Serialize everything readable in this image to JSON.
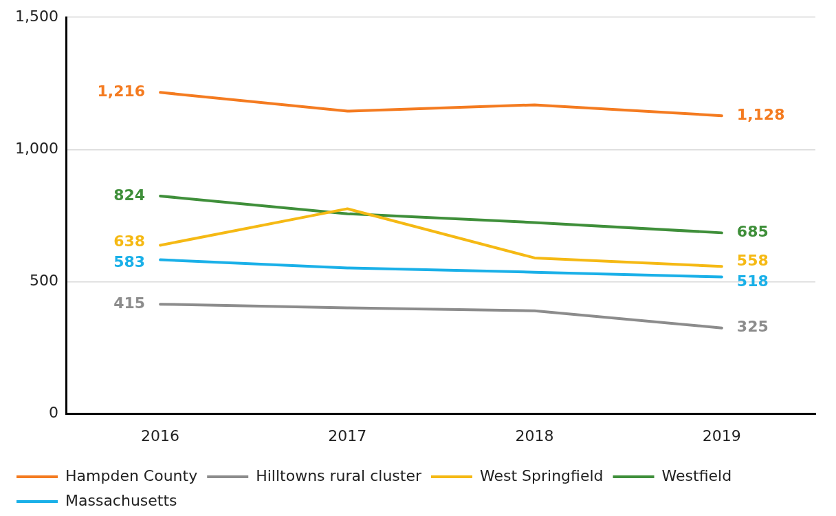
{
  "chart_data": {
    "type": "line",
    "categories": [
      "2016",
      "2017",
      "2018",
      "2019"
    ],
    "series": [
      {
        "name": "Hampden County",
        "color": "#f47b20",
        "values": [
          1216,
          1145,
          1169,
          1128
        ],
        "value_labels": [
          "1,216",
          null,
          null,
          "1,128"
        ]
      },
      {
        "name": "Hilltowns rural cluster",
        "color": "#8c8c8c",
        "values": [
          415,
          401,
          390,
          325
        ],
        "value_labels": [
          "415",
          null,
          null,
          "325"
        ]
      },
      {
        "name": "West Springfield",
        "color": "#f5b914",
        "values": [
          638,
          776,
          590,
          558
        ],
        "value_labels": [
          "638",
          null,
          null,
          "558"
        ]
      },
      {
        "name": "Westfield",
        "color": "#3f8f3a",
        "values": [
          824,
          757,
          724,
          685
        ],
        "value_labels": [
          "824",
          null,
          null,
          "685"
        ]
      },
      {
        "name": "Massachusetts",
        "color": "#1ab0e8",
        "values": [
          583,
          552,
          536,
          518
        ],
        "value_labels": [
          "583",
          null,
          null,
          "518"
        ]
      }
    ],
    "ylim": [
      0,
      1500
    ],
    "yticks": [
      0,
      500,
      {
        "value": 1000,
        "label": "1,000"
      },
      {
        "value": 1500,
        "label": "1,500"
      }
    ],
    "grid": "y",
    "legend": "bottom",
    "marker": "none",
    "line_style": "solid"
  }
}
